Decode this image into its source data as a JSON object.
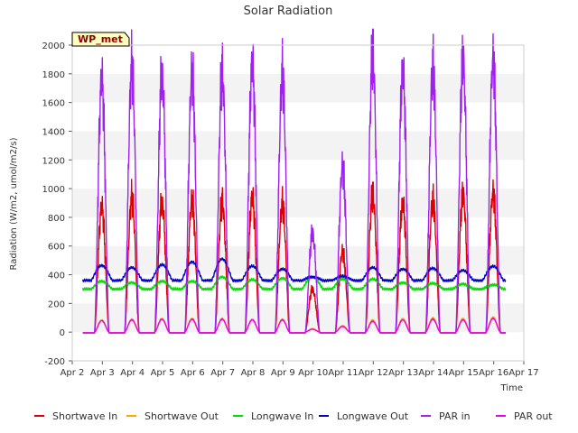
{
  "chart_data": {
    "type": "line",
    "title": "Solar Radiation",
    "xlabel": "Time",
    "ylabel": "Radiation (W/m2, umol/m2/s)",
    "badge": "WP_met",
    "xlim": [
      2,
      17
    ],
    "ylim": [
      -200,
      2000
    ],
    "x_ticks": [
      2,
      3,
      4,
      5,
      6,
      7,
      8,
      9,
      10,
      11,
      12,
      13,
      14,
      15,
      16,
      17
    ],
    "x_tick_labels": [
      "Apr 2",
      "Apr 3",
      "Apr 4",
      "Apr 5",
      "Apr 6",
      "Apr 7",
      "Apr 8",
      "Apr 9",
      "Apr 10",
      "Apr 11",
      "Apr 12",
      "Apr 13",
      "Apr 14",
      "Apr 15",
      "Apr 16",
      "Apr 17"
    ],
    "y_ticks": [
      -200,
      0,
      200,
      400,
      600,
      800,
      1000,
      1200,
      1400,
      1600,
      1800,
      2000
    ],
    "y_tick_labels": [
      "-200",
      "0",
      "200",
      "400",
      "600",
      "800",
      "1000",
      "1200",
      "1400",
      "1600",
      "1800",
      "2000"
    ],
    "grid": "horizontal bands",
    "legend_placement": "bottom",
    "x_start": 2.35,
    "x_end": 16.4,
    "daily_peaks": {
      "days": [
        3,
        4,
        5,
        6,
        7,
        8,
        9,
        10,
        11,
        12,
        13,
        14,
        15,
        16
      ],
      "shortwave_in": [
        870,
        940,
        905,
        920,
        905,
        940,
        895,
        300,
        560,
        960,
        900,
        920,
        960,
        970
      ],
      "shortwave_out": [
        85,
        90,
        95,
        95,
        95,
        90,
        90,
        25,
        45,
        85,
        95,
        100,
        95,
        105
      ],
      "par_in": [
        1760,
        1860,
        1800,
        1810,
        1810,
        1870,
        1805,
        690,
        1150,
        1940,
        1830,
        1850,
        1900,
        1900
      ],
      "par_out": [
        80,
        85,
        90,
        90,
        90,
        85,
        85,
        20,
        40,
        75,
        85,
        90,
        85,
        95
      ],
      "longwave_in": [
        355,
        345,
        355,
        355,
        385,
        365,
        375,
        385,
        370,
        370,
        345,
        340,
        335,
        330
      ],
      "longwave_out": [
        465,
        450,
        470,
        490,
        510,
        460,
        440,
        385,
        390,
        450,
        440,
        445,
        430,
        460
      ]
    },
    "nighttime": {
      "longwave_in": 300,
      "longwave_out": 360
    },
    "series": [
      {
        "name": "Shortwave In",
        "color": "#dd0000",
        "key": "shortwave_in"
      },
      {
        "name": "Shortwave Out",
        "color": "#ffa500",
        "key": "shortwave_out"
      },
      {
        "name": "Longwave In",
        "color": "#00dd00",
        "key": "longwave_in"
      },
      {
        "name": "Longwave Out",
        "color": "#0000cc",
        "key": "longwave_out"
      },
      {
        "name": "PAR in",
        "color": "#a020f0",
        "key": "par_in"
      },
      {
        "name": "PAR out",
        "color": "#ee00ee",
        "key": "par_out"
      }
    ]
  }
}
